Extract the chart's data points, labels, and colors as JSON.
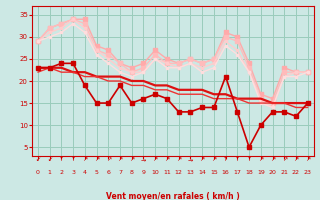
{
  "background_color": "#cce8e4",
  "grid_color": "#99ccbb",
  "xlabel": "Vent moyen/en rafales ( km/h )",
  "xlabel_color": "#cc0000",
  "xlim": [
    -0.5,
    23.5
  ],
  "ylim": [
    3,
    37
  ],
  "yticks": [
    5,
    10,
    15,
    20,
    25,
    30,
    35
  ],
  "xticks": [
    0,
    1,
    2,
    3,
    4,
    5,
    6,
    7,
    8,
    9,
    10,
    11,
    12,
    13,
    14,
    15,
    16,
    17,
    18,
    19,
    20,
    21,
    22,
    23
  ],
  "series": [
    {
      "y": [
        29,
        32,
        33,
        34,
        34,
        28,
        27,
        24,
        23,
        24,
        27,
        25,
        24,
        25,
        24,
        25,
        31,
        30,
        24,
        17,
        16,
        23,
        22,
        22
      ],
      "color": "#ffaaaa",
      "lw": 1.0,
      "ms": 2.5,
      "zorder": 2
    },
    {
      "y": [
        29,
        32,
        33,
        34,
        33,
        27,
        26,
        24,
        22,
        23,
        26,
        24,
        24,
        25,
        24,
        25,
        30,
        29,
        23,
        16,
        15,
        22,
        22,
        22
      ],
      "color": "#ffbbbb",
      "lw": 1.0,
      "ms": 2.5,
      "zorder": 2
    },
    {
      "y": [
        29,
        31,
        32,
        34,
        32,
        27,
        25,
        23,
        22,
        22,
        25,
        24,
        23,
        24,
        23,
        24,
        29,
        27,
        22,
        16,
        14,
        21,
        22,
        22
      ],
      "color": "#ffcccc",
      "lw": 1.0,
      "ms": 2.0,
      "zorder": 2
    },
    {
      "y": [
        29,
        30,
        31,
        33,
        31,
        26,
        24,
        22,
        21,
        22,
        25,
        23,
        23,
        24,
        22,
        23,
        28,
        26,
        22,
        15,
        14,
        21,
        21,
        22
      ],
      "color": "#ffdddd",
      "lw": 1.0,
      "ms": 2.0,
      "zorder": 2
    },
    {
      "y": [
        23,
        23,
        24,
        24,
        19,
        15,
        15,
        19,
        15,
        16,
        17,
        16,
        13,
        13,
        14,
        14,
        21,
        13,
        5,
        10,
        13,
        13,
        12,
        15
      ],
      "color": "#cc0000",
      "lw": 1.2,
      "ms": 2.5,
      "zorder": 4
    },
    {
      "y": [
        23,
        23,
        23,
        22,
        22,
        21,
        21,
        21,
        20,
        20,
        19,
        19,
        18,
        18,
        18,
        17,
        17,
        16,
        16,
        16,
        15,
        15,
        15,
        15
      ],
      "color": "#dd1111",
      "lw": 1.6,
      "ms": 0,
      "zorder": 3
    },
    {
      "y": [
        22,
        23,
        22,
        22,
        21,
        21,
        20,
        20,
        19,
        19,
        18,
        18,
        17,
        17,
        17,
        16,
        16,
        16,
        15,
        15,
        15,
        15,
        14,
        14
      ],
      "color": "#ee3333",
      "lw": 1.0,
      "ms": 0,
      "zorder": 3
    }
  ],
  "wind_arrows": [
    "↙",
    "↙",
    "↑",
    "↑",
    "↗",
    "↗",
    "↗",
    "↗",
    "↗",
    "→",
    "↗",
    "↗",
    "↗",
    "→",
    "↗",
    "↗",
    "↑",
    "↑",
    "↑",
    "↗",
    "↗",
    "↗",
    "↗",
    "↗"
  ]
}
